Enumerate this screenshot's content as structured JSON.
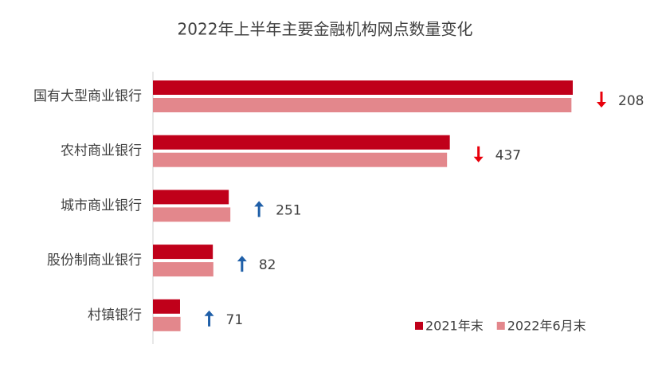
{
  "chart_data": {
    "type": "bar",
    "orientation": "horizontal",
    "title": "2022年上半年主要金融机构网点数量变化",
    "categories": [
      "国有大型商业银行",
      "农村商业银行",
      "城市商业银行",
      "股份制商业银行",
      "村镇银行"
    ],
    "series": [
      {
        "name": "2021年末",
        "color": "#c0001a",
        "values": [
          65900,
          46600,
          11900,
          9400,
          4250
        ]
      },
      {
        "name": "2022年6月末",
        "color": "#e3878c",
        "values": [
          65692,
          46163,
          12151,
          9482,
          4321
        ]
      }
    ],
    "changes": [
      208,
      437,
      251,
      82,
      71
    ],
    "up_color": "#1f5fa8",
    "down_color": "#e8000b",
    "legend": "bottom-right"
  }
}
